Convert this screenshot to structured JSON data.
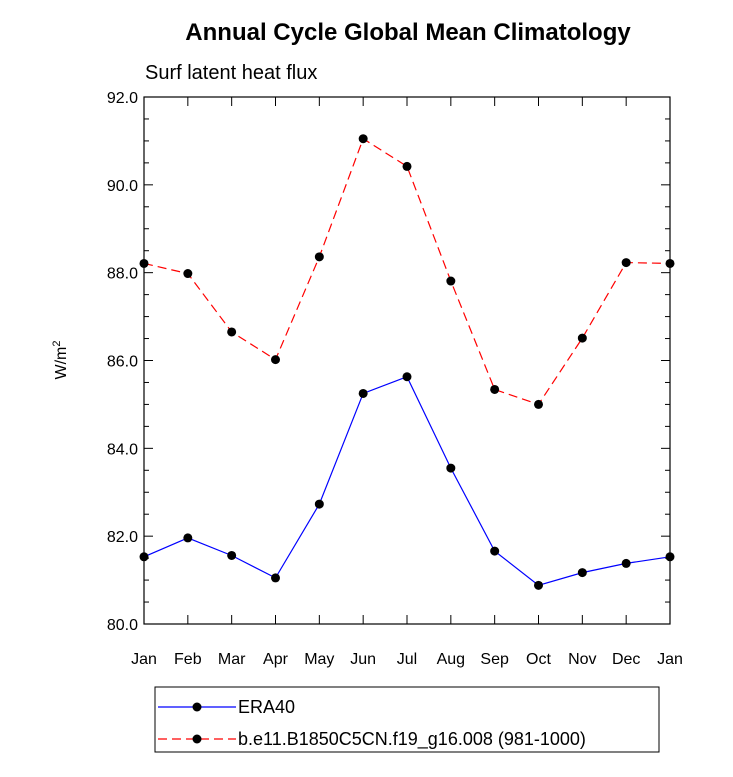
{
  "chart_data": {
    "type": "line",
    "title": "Annual Cycle Global Mean Climatology",
    "subtitle": "Surf latent heat flux",
    "ylabel": "W/m",
    "ylabel_sup": "2",
    "xlabel": "",
    "categories": [
      "Jan",
      "Feb",
      "Mar",
      "Apr",
      "May",
      "Jun",
      "Jul",
      "Aug",
      "Sep",
      "Oct",
      "Nov",
      "Dec",
      "Jan"
    ],
    "ylim": [
      80.0,
      92.0
    ],
    "yticks": [
      "80.0",
      "82.0",
      "84.0",
      "86.0",
      "88.0",
      "90.0",
      "92.0"
    ],
    "series": [
      {
        "name": "ERA40",
        "color": "#0000ff",
        "dash": "solid",
        "values": [
          81.53,
          81.96,
          81.56,
          81.05,
          82.73,
          85.25,
          85.63,
          83.55,
          81.66,
          80.88,
          81.17,
          81.38,
          81.53
        ]
      },
      {
        "name": "b.e11.B1850C5CN.f19_g16.008 (981-1000)",
        "color": "#ff0000",
        "dash": "dashed",
        "values": [
          88.21,
          87.98,
          86.65,
          86.02,
          88.36,
          91.05,
          90.42,
          87.81,
          85.34,
          85.0,
          86.51,
          88.23,
          88.21
        ]
      }
    ],
    "legend_position": "bottom"
  }
}
